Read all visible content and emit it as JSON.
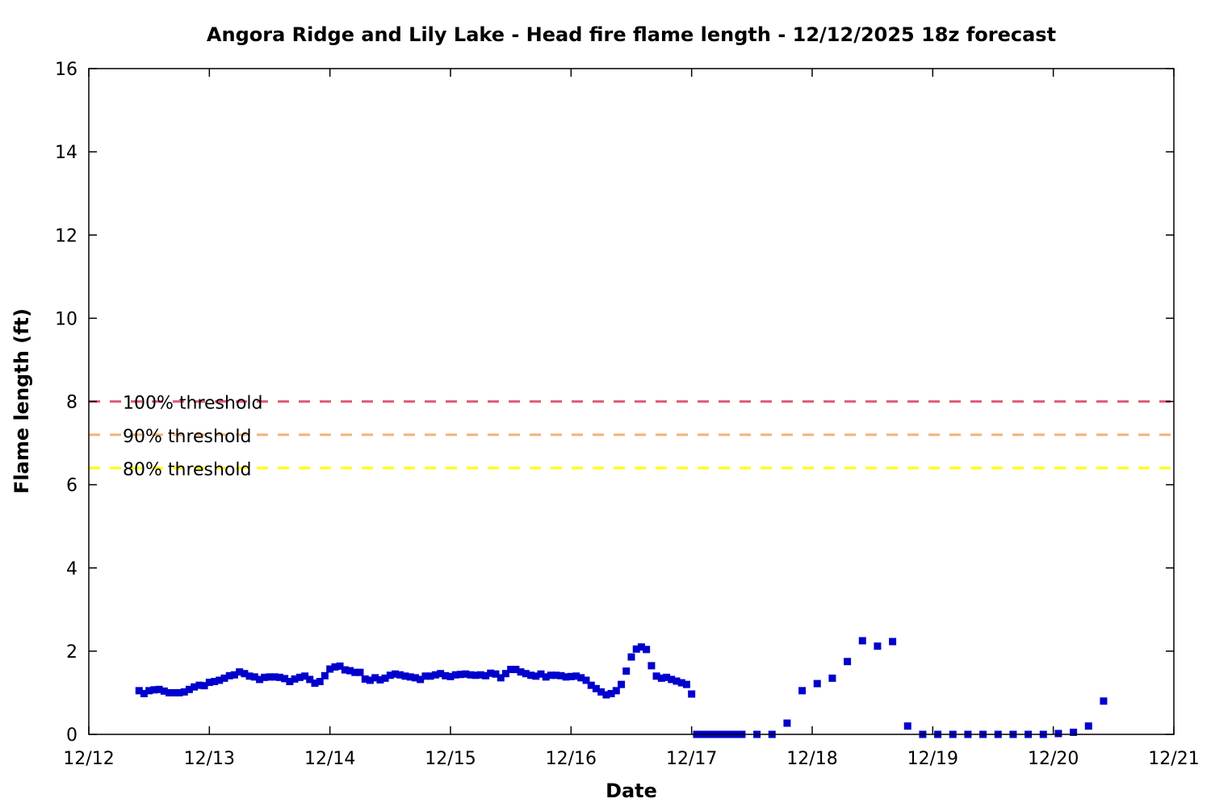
{
  "chart_data": {
    "type": "scatter",
    "title": "Angora Ridge and Lily Lake - Head fire flame length - 12/12/2025 18z forecast",
    "xlabel": "Date",
    "ylabel": "Flame length (ft)",
    "x_ticks": [
      "12/12",
      "12/13",
      "12/14",
      "12/15",
      "12/16",
      "12/17",
      "12/18",
      "12/19",
      "12/20",
      "12/21"
    ],
    "xlim_days": [
      0,
      9
    ],
    "ylim": [
      0,
      16
    ],
    "y_ticks": [
      0,
      2,
      4,
      6,
      8,
      10,
      12,
      14,
      16
    ],
    "grid": false,
    "marker_color": "#0000cc",
    "thresholds": [
      {
        "label": "100% threshold",
        "value": 8.0,
        "color": "#e0607a"
      },
      {
        "label": "90% threshold",
        "value": 7.2,
        "color": "#f4b37a"
      },
      {
        "label": "80% threshold",
        "value": 6.4,
        "color": "#ffff00"
      }
    ],
    "series": [
      {
        "x": [
          0.417,
          0.458,
          0.5,
          0.542,
          0.583,
          0.625,
          0.667,
          0.708,
          0.75,
          0.792,
          0.833,
          0.875,
          0.917,
          0.958,
          1.0,
          1.042,
          1.083,
          1.125,
          1.167,
          1.208,
          1.25,
          1.292,
          1.333,
          1.375,
          1.417,
          1.458,
          1.5,
          1.542,
          1.583,
          1.625,
          1.667,
          1.708,
          1.75,
          1.792,
          1.833,
          1.875,
          1.917,
          1.958,
          2.0,
          2.042,
          2.083,
          2.125,
          2.167,
          2.208,
          2.25,
          2.292,
          2.333,
          2.375,
          2.417,
          2.458,
          2.5,
          2.542,
          2.583,
          2.625,
          2.667,
          2.708,
          2.75,
          2.792,
          2.833,
          2.875,
          2.917,
          2.958,
          3.0,
          3.042,
          3.083,
          3.125,
          3.167,
          3.208,
          3.25,
          3.292,
          3.333,
          3.375,
          3.417,
          3.458,
          3.5,
          3.542,
          3.583,
          3.625,
          3.667,
          3.708,
          3.75,
          3.792,
          3.833,
          3.875,
          3.917,
          3.958,
          4.0,
          4.042,
          4.083,
          4.125,
          4.167,
          4.208,
          4.25,
          4.292,
          4.333,
          4.375,
          4.417,
          4.458,
          4.5,
          4.542,
          4.583,
          4.625,
          4.667,
          4.708,
          4.75,
          4.792,
          4.833,
          4.875,
          4.917,
          4.958,
          5.0,
          5.042,
          5.083,
          5.125,
          5.167,
          5.208,
          5.25,
          5.292,
          5.333,
          5.375,
          5.417,
          5.542,
          5.667,
          5.792,
          5.917,
          6.042,
          6.167,
          6.292,
          6.417,
          6.542,
          6.667,
          6.792,
          6.917,
          7.042,
          7.167,
          7.292,
          7.417,
          7.542,
          7.667,
          7.792,
          7.917,
          8.042,
          8.167,
          8.292,
          8.417
        ],
        "y": [
          1.05,
          0.98,
          1.05,
          1.07,
          1.08,
          1.04,
          1.0,
          1.0,
          1.0,
          1.02,
          1.08,
          1.14,
          1.18,
          1.17,
          1.25,
          1.27,
          1.3,
          1.35,
          1.41,
          1.43,
          1.5,
          1.46,
          1.4,
          1.38,
          1.32,
          1.37,
          1.38,
          1.38,
          1.37,
          1.34,
          1.27,
          1.33,
          1.37,
          1.4,
          1.32,
          1.23,
          1.27,
          1.41,
          1.57,
          1.62,
          1.64,
          1.55,
          1.53,
          1.49,
          1.49,
          1.33,
          1.3,
          1.36,
          1.31,
          1.35,
          1.42,
          1.45,
          1.43,
          1.4,
          1.38,
          1.36,
          1.32,
          1.4,
          1.4,
          1.43,
          1.46,
          1.41,
          1.39,
          1.43,
          1.44,
          1.45,
          1.43,
          1.42,
          1.43,
          1.41,
          1.47,
          1.45,
          1.36,
          1.46,
          1.56,
          1.56,
          1.5,
          1.46,
          1.42,
          1.4,
          1.45,
          1.38,
          1.42,
          1.42,
          1.41,
          1.38,
          1.39,
          1.4,
          1.36,
          1.3,
          1.18,
          1.1,
          1.02,
          0.95,
          0.98,
          1.05,
          1.2,
          1.52,
          1.86,
          2.05,
          2.1,
          2.04,
          1.65,
          1.4,
          1.35,
          1.37,
          1.32,
          1.28,
          1.24,
          1.2,
          0.97,
          0.0,
          0.0,
          0.0,
          0.0,
          0.0,
          0.0,
          0.0,
          0.0,
          0.0,
          0.0,
          0.0,
          0.0,
          0.27,
          1.05,
          1.22,
          1.35,
          1.75,
          2.25,
          2.12,
          2.23,
          0.2,
          0.0,
          0.0,
          0.0,
          0.0,
          0.0,
          0.0,
          0.0,
          0.0,
          0.0,
          0.02,
          0.05,
          0.2,
          0.8
        ]
      }
    ]
  }
}
